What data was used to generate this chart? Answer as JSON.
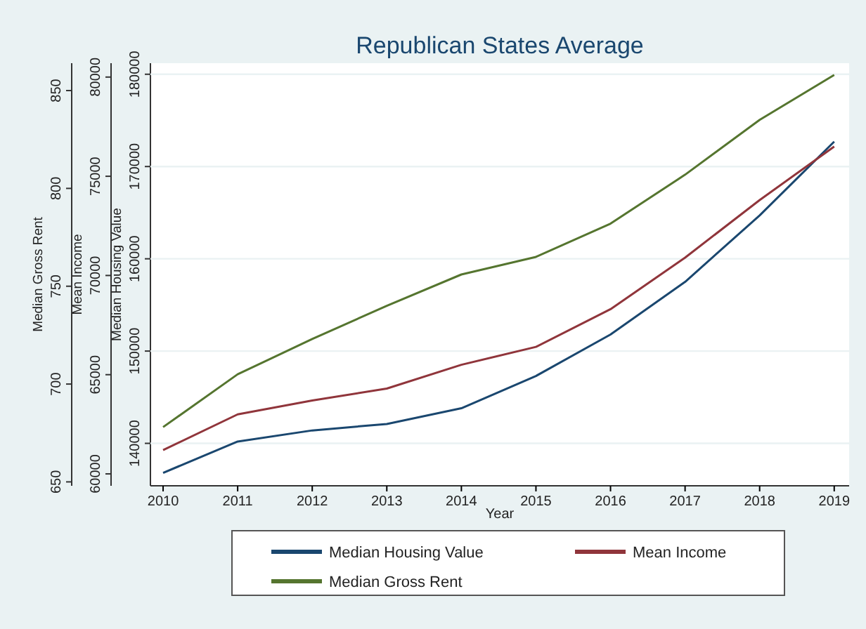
{
  "chart_data": {
    "type": "line",
    "title": "Republican States Average",
    "xlabel": "Year",
    "ylabel": "Median Housing Value",
    "y2label": "Mean Income",
    "y3label": "Median Gross Rent",
    "x": [
      2010,
      2011,
      2012,
      2013,
      2014,
      2015,
      2016,
      2017,
      2018,
      2019
    ],
    "xlim": [
      2009.83,
      2019.2
    ],
    "xticks": [
      2010,
      2011,
      2012,
      2013,
      2014,
      2015,
      2016,
      2017,
      2018,
      2019
    ],
    "ylim": [
      135400,
      181200
    ],
    "yticks": [
      140000,
      150000,
      160000,
      170000,
      180000
    ],
    "y2lim": [
      59400,
      80700
    ],
    "y2ticks": [
      60000,
      65000,
      70000,
      75000,
      80000
    ],
    "y3lim": [
      648,
      864
    ],
    "y3ticks": [
      650,
      700,
      750,
      800,
      850
    ],
    "grid": "y",
    "legend": "bottom",
    "line_style": "solid",
    "marker": "none",
    "series": [
      {
        "name": "Median Housing Value",
        "color": "#1a476f",
        "values": [
          136800,
          140200,
          141400,
          142100,
          143800,
          147300,
          151800,
          157500,
          164700,
          172700
        ]
      },
      {
        "name": "Mean Income",
        "color": "#90353b",
        "axis": "y2",
        "values": [
          61200,
          63000,
          63700,
          64300,
          65500,
          66400,
          68300,
          70900,
          73800,
          76500
        ]
      },
      {
        "name": "Median Gross Rent",
        "color": "#55752f",
        "axis": "y3",
        "values": [
          678,
          705,
          723,
          740,
          756,
          765,
          782,
          807,
          835,
          858
        ]
      }
    ]
  }
}
